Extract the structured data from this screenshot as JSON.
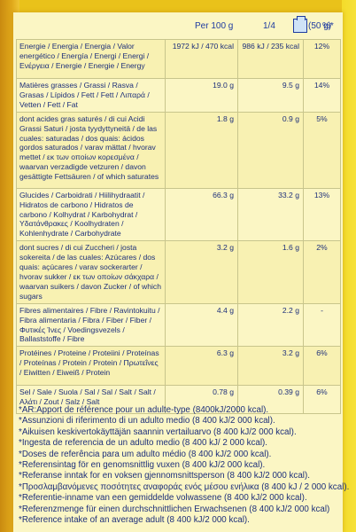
{
  "header": {
    "per_100g": "Per 100 g",
    "quarter": "1/4",
    "quarter_weight": "(50 g)",
    "pct": "%*"
  },
  "rows": [
    {
      "label": "Energie / Energia / Energia / Valor energético / Energía / Energi / Energi / Ενέργεια / Energie / Energie / Energy",
      "per100": "1972 kJ / 470 kcal",
      "quarter": "986 kJ / 235 kcal",
      "pct": "12%"
    },
    {
      "label": "Matières grasses / Grassi / Rasva / Grasas / Lípidos / Fett / Fett / Λιπαρά / Vetten / Fett / Fat",
      "per100": "19.0 g",
      "quarter": "9.5 g",
      "pct": "14%"
    },
    {
      "label": "dont acides gras saturés / di cui Acidi Grassi Saturi / josta tyydyttyneitä / de las cuales: saturadas / dos quais: ácidos gordos saturados / varav mättat / hvorav mettet / εκ των οποίων κορεσμένα / waarvan verzadigde vetzuren / davon gesättigte Fettsäuren / of which saturates",
      "per100": "1.8 g",
      "quarter": "0.9 g",
      "pct": "5%"
    },
    {
      "label": "Glucides / Carboidrati / Hiilihydraatit / Hidratos de carbono / Hidratos de carbono / Kolhydrat / Karbohydrat / Υδατάνθρακες / Koolhydraten / Kohlenhydrate / Carbohydrate",
      "per100": "66.3 g",
      "quarter": "33.2 g",
      "pct": "13%"
    },
    {
      "label": "dont sucres / di cui Zuccheri / josta sokereita / de las cuales: Azúcares / dos quais: açúcares / varav sockerarter / hvorav sukker / εκ των οποίων σάκχαρα / waarvan suikers / davon Zucker / of which sugars",
      "per100": "3.2 g",
      "quarter": "1.6 g",
      "pct": "2%"
    },
    {
      "label": "Fibres alimentaires / Fibre / Ravintokuitu / Fibra alimentaria / Fibra / Fiber / Fiber / Φυτικές Ίνες / Voedingsvezels / Ballaststoffe / Fibre",
      "per100": "4.4 g",
      "quarter": "2.2 g",
      "pct": "-"
    },
    {
      "label": "Protéines / Proteine / Proteiini / Proteínas / Proteínas / Protein / Protein / Πρωτεΐνες / Eiwitten / Eiweiß / Protein",
      "per100": "6.3 g",
      "quarter": "3.2 g",
      "pct": "6%"
    },
    {
      "label": "Sel / Sale / Suola / Sal / Sal / Salt / Salt / Αλάτι / Zout / Salz / Salt",
      "per100": "0.78 g",
      "quarter": "0.39 g",
      "pct": "6%"
    }
  ],
  "notes": [
    "*AR:Apport de référence pour un adulte-type (8400kJ/2000 kcal).",
    "*Assunzioni di riferimento di un adulto medio (8 400 kJ/2 000 kcal).",
    "*Aikuisen keskivertokäyttäjän saannin vertailuarvo (8 400 kJ/2 000 kcal).",
    "*Ingesta de referencia de un adulto medio (8 400 kJ/ 2 000 kcal).",
    "*Doses de referência para um adulto médio (8 400 kJ/2 000 kcal).",
    "*Referensintag för en genomsnittlig vuxen (8 400 kJ/2 000 kcal).",
    "*Referanse inntak for en voksen gjennomsnittsperson (8 400 kJ/2 000 kcal).",
    "*Προσλαμβανόμενες ποσότητες αναφοράς ενός μέσου ενήλικα (8 400 kJ / 2 000 kcal).",
    "*Referentie-inname van een gemiddelde volwassene (8 400 kJ/2 000 kcal).",
    "*Referenzmenge für einen durchschnittlichen Erwachsenen (8 400 kJ/2 000 kcal)",
    "*Reference intake of an average adult (8 400 kJ/2 000 kcal)."
  ]
}
